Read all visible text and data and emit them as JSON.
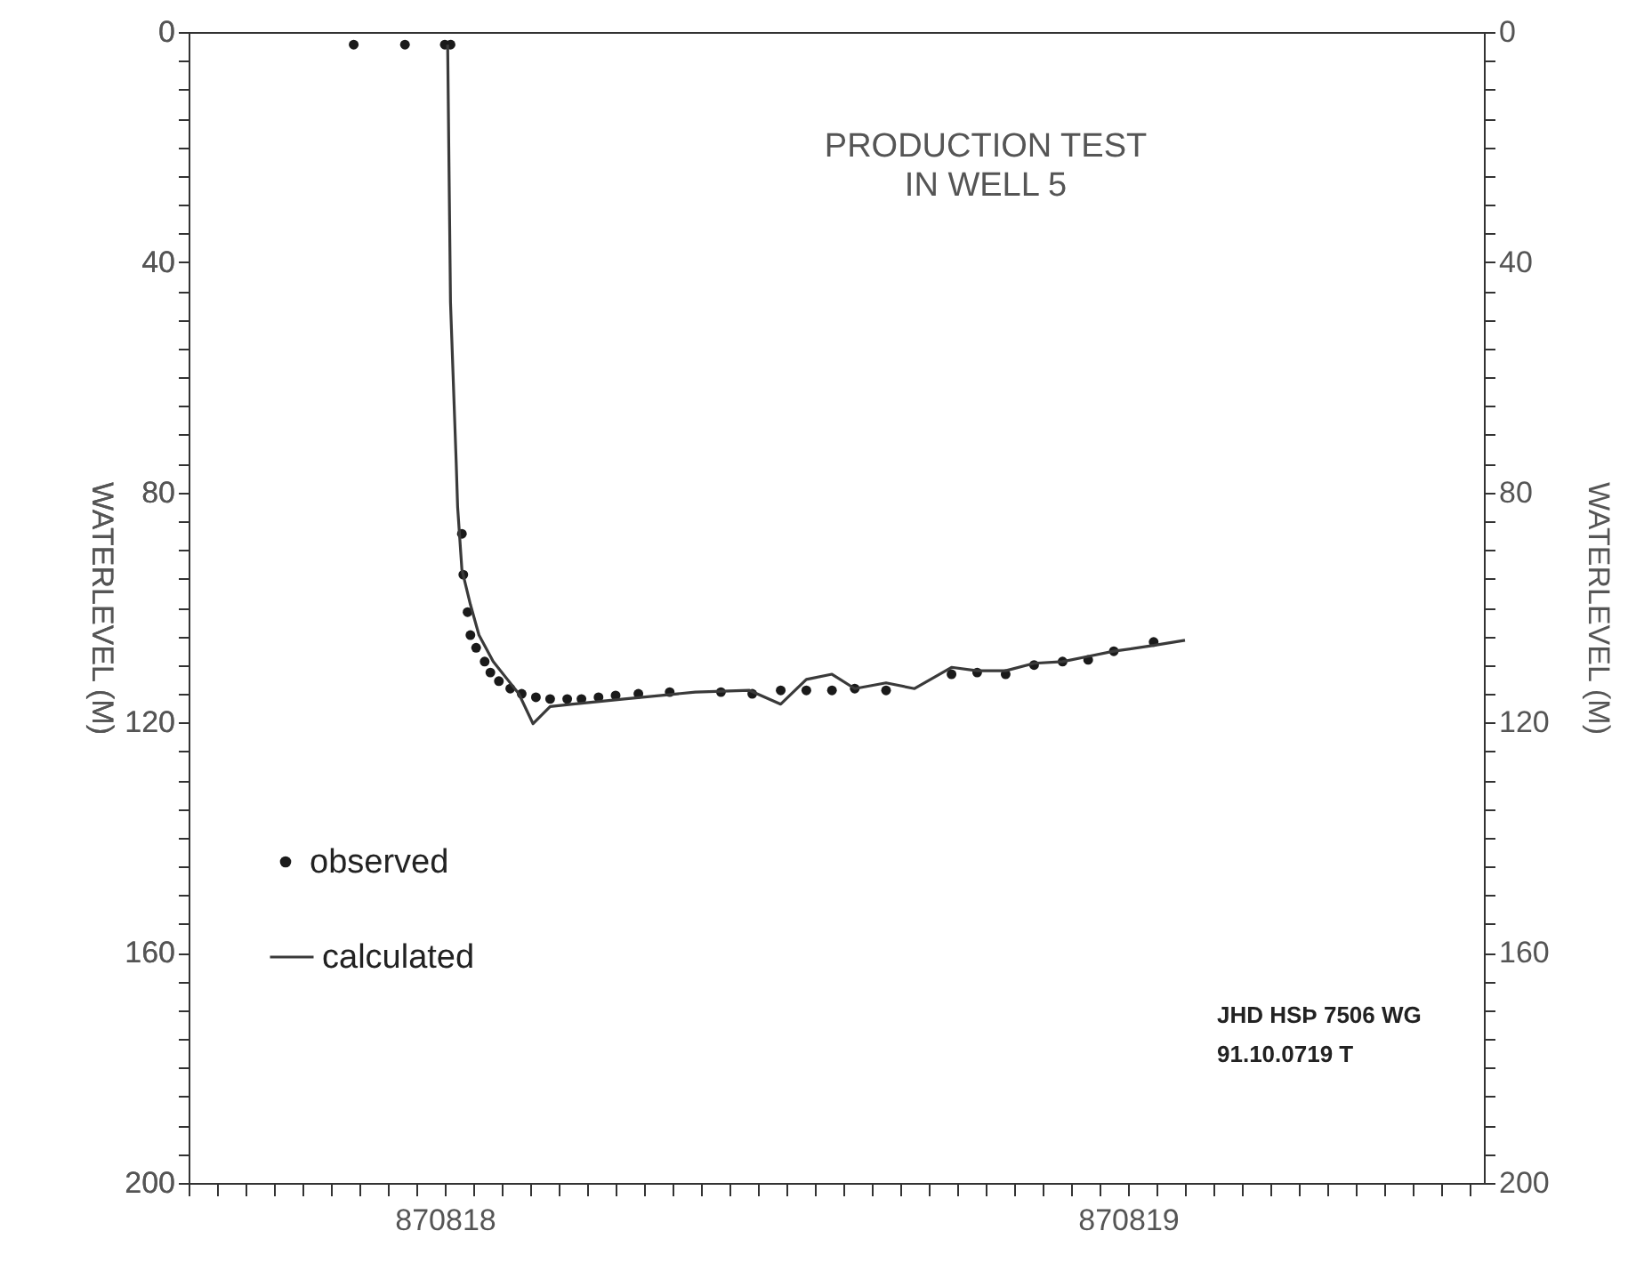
{
  "chart_data": {
    "type": "line",
    "title": "PRODUCTION TEST\nIN WELL 5",
    "ylabel": "WATERLEVEL (M)",
    "y2label": "WATERLEVEL (M)",
    "annotations": [
      "JHD HSÞ 7506 WG",
      "91.10.0719 T"
    ],
    "xlim": [
      "--08-18T03:00",
      "--08-20T00:30"
    ],
    "xticks": [
      {
        "value": "--08-18T03:00",
        "label": null
      },
      {
        "value": "--08-18T04:00",
        "label": null
      },
      {
        "value": "--08-18T05:00",
        "label": null
      },
      {
        "value": "--08-18T06:00",
        "label": null
      },
      {
        "value": "--08-18T07:00",
        "label": null
      },
      {
        "value": "--08-18T08:00",
        "label": null
      },
      {
        "value": "--08-18T09:00",
        "label": null
      },
      {
        "value": "--08-18T10:00",
        "label": null
      },
      {
        "value": "--08-18T11:00",
        "label": null
      },
      {
        "value": "--08-18T12:00",
        "label": "870818"
      },
      {
        "value": "--08-18T13:00",
        "label": null
      },
      {
        "value": "--08-18T14:00",
        "label": null
      },
      {
        "value": "--08-18T15:00",
        "label": null
      },
      {
        "value": "--08-18T16:00",
        "label": null
      },
      {
        "value": "--08-18T17:00",
        "label": null
      },
      {
        "value": "--08-18T18:00",
        "label": null
      },
      {
        "value": "--08-18T19:00",
        "label": null
      },
      {
        "value": "--08-18T20:00",
        "label": null
      },
      {
        "value": "--08-18T21:00",
        "label": null
      },
      {
        "value": "--08-18T22:00",
        "label": null
      },
      {
        "value": "--08-18T23:00",
        "label": null
      },
      {
        "value": "--08-19T00:00",
        "label": null
      },
      {
        "value": "--08-19T01:00",
        "label": null
      },
      {
        "value": "--08-19T02:00",
        "label": null
      },
      {
        "value": "--08-19T03:00",
        "label": null
      },
      {
        "value": "--08-19T04:00",
        "label": null
      },
      {
        "value": "--08-19T05:00",
        "label": null
      },
      {
        "value": "--08-19T06:00",
        "label": null
      },
      {
        "value": "--08-19T07:00",
        "label": null
      },
      {
        "value": "--08-19T08:00",
        "label": null
      },
      {
        "value": "--08-19T09:00",
        "label": null
      },
      {
        "value": "--08-19T10:00",
        "label": null
      },
      {
        "value": "--08-19T11:00",
        "label": null
      },
      {
        "value": "--08-19T12:00",
        "label": "870819"
      },
      {
        "value": "--08-19T13:00",
        "label": null
      },
      {
        "value": "--08-19T14:00",
        "label": null
      },
      {
        "value": "--08-19T15:00",
        "label": null
      },
      {
        "value": "--08-19T16:00",
        "label": null
      },
      {
        "value": "--08-19T17:00",
        "label": null
      },
      {
        "value": "--08-19T18:00",
        "label": null
      },
      {
        "value": "--08-19T19:00",
        "label": null
      },
      {
        "value": "--08-19T20:00",
        "label": null
      },
      {
        "value": "--08-19T21:00",
        "label": null
      },
      {
        "value": "--08-19T22:00",
        "label": null
      },
      {
        "value": "--08-19T23:00",
        "label": null
      },
      {
        "value": "--08-20T00:00",
        "label": null
      }
    ],
    "ylim": [
      200,
      0
    ],
    "yticks": [
      0,
      {
        "value": 5,
        "label": null
      },
      {
        "value": 10,
        "label": null
      },
      {
        "value": 15,
        "label": null
      },
      {
        "value": 20,
        "label": null
      },
      {
        "value": 25,
        "label": null
      },
      {
        "value": 30,
        "label": null
      },
      {
        "value": 35,
        "label": null
      },
      40,
      {
        "value": 45,
        "label": null
      },
      {
        "value": 50,
        "label": null
      },
      {
        "value": 55,
        "label": null
      },
      {
        "value": 60,
        "label": null
      },
      {
        "value": 65,
        "label": null
      },
      {
        "value": 70,
        "label": null
      },
      {
        "value": 75,
        "label": null
      },
      80,
      {
        "value": 85,
        "label": null
      },
      {
        "value": 90,
        "label": null
      },
      {
        "value": 95,
        "label": null
      },
      {
        "value": 100,
        "label": null
      },
      {
        "value": 105,
        "label": null
      },
      {
        "value": 110,
        "label": null
      },
      {
        "value": 115,
        "label": null
      },
      120,
      {
        "value": 125,
        "label": null
      },
      {
        "value": 130,
        "label": null
      },
      {
        "value": 135,
        "label": null
      },
      {
        "value": 140,
        "label": null
      },
      {
        "value": 145,
        "label": null
      },
      {
        "value": 150,
        "label": null
      },
      {
        "value": 155,
        "label": null
      },
      160,
      {
        "value": 165,
        "label": null
      },
      {
        "value": 170,
        "label": null
      },
      {
        "value": 175,
        "label": null
      },
      {
        "value": 180,
        "label": null
      },
      {
        "value": 185,
        "label": null
      },
      {
        "value": 190,
        "label": null
      },
      {
        "value": 195,
        "label": null
      },
      200
    ],
    "y2lim": [
      200,
      0
    ],
    "y2ticks": [
      0,
      {
        "value": 5,
        "label": null
      },
      {
        "value": 10,
        "label": null
      },
      {
        "value": 15,
        "label": null
      },
      {
        "value": 20,
        "label": null
      },
      {
        "value": 25,
        "label": null
      },
      {
        "value": 30,
        "label": null
      },
      {
        "value": 35,
        "label": null
      },
      40,
      {
        "value": 45,
        "label": null
      },
      {
        "value": 50,
        "label": null
      },
      {
        "value": 55,
        "label": null
      },
      {
        "value": 60,
        "label": null
      },
      {
        "value": 65,
        "label": null
      },
      {
        "value": 70,
        "label": null
      },
      {
        "value": 75,
        "label": null
      },
      80,
      {
        "value": 85,
        "label": null
      },
      {
        "value": 90,
        "label": null
      },
      {
        "value": 95,
        "label": null
      },
      {
        "value": 100,
        "label": null
      },
      {
        "value": 105,
        "label": null
      },
      {
        "value": 110,
        "label": null
      },
      {
        "value": 115,
        "label": null
      },
      120,
      {
        "value": 125,
        "label": null
      },
      {
        "value": 130,
        "label": null
      },
      {
        "value": 135,
        "label": null
      },
      {
        "value": 140,
        "label": null
      },
      {
        "value": 145,
        "label": null
      },
      {
        "value": 150,
        "label": null
      },
      {
        "value": 155,
        "label": null
      },
      160,
      {
        "value": 165,
        "label": null
      },
      {
        "value": 170,
        "label": null
      },
      {
        "value": 175,
        "label": null
      },
      {
        "value": 180,
        "label": null
      },
      {
        "value": 185,
        "label": null
      },
      {
        "value": 190,
        "label": null
      },
      {
        "value": 195,
        "label": null
      },
      200
    ],
    "grid": false,
    "legend": "bottom left",
    "series": [
      {
        "name": "observed",
        "type": "scatter",
        "color": "#1a1a1a",
        "x": [
          "--08-18T08:48",
          "--08-18T10:36",
          "--08-18T12:00",
          "--08-18T12:12",
          "--08-18T12:36",
          "--08-18T12:39",
          "--08-18T12:48",
          "--08-18T12:54",
          "--08-18T13:06",
          "--08-18T13:24",
          "--08-18T13:36",
          "--08-18T13:54",
          "--08-18T14:18",
          "--08-18T14:42",
          "--08-18T15:12",
          "--08-18T15:42",
          "--08-18T16:18",
          "--08-18T16:48",
          "--08-18T17:24",
          "--08-18T18:00",
          "--08-18T18:48",
          "--08-18T19:54",
          "--08-18T21:42",
          "--08-18T22:48",
          "--08-18T23:48",
          "--08-19T00:42",
          "--08-19T01:36",
          "--08-19T02:24",
          "--08-19T03:30",
          "--08-19T05:48",
          "--08-19T06:42",
          "--08-19T07:42",
          "--08-19T08:42",
          "--08-19T09:42",
          "--08-19T10:36",
          "--08-19T11:30",
          "--08-19T12:54"
        ],
        "values": [
          2.2,
          2.2,
          2.2,
          2.2,
          87.2,
          94.3,
          100.8,
          104.8,
          107.0,
          109.4,
          111.3,
          112.8,
          114.1,
          115.0,
          115.6,
          115.9,
          115.9,
          115.9,
          115.6,
          115.3,
          115.0,
          114.7,
          114.7,
          115.0,
          114.4,
          114.4,
          114.4,
          114.1,
          114.4,
          111.6,
          111.3,
          111.6,
          110.0,
          109.4,
          109.1,
          107.6,
          106.0
        ]
      },
      {
        "name": "calculated",
        "type": "line",
        "color": "#3a3a3a",
        "x": [
          "--08-18T12:06",
          "--08-18T12:12",
          "--08-18T12:24",
          "--08-18T12:27",
          "--08-18T12:36",
          "--08-18T12:54",
          "--08-18T13:12",
          "--08-18T13:42",
          "--08-18T14:12",
          "--08-18T14:36",
          "--08-18T15:06",
          "--08-18T15:42",
          "--08-18T16:30",
          "--08-18T18:18",
          "--08-18T20:48",
          "--08-18T22:42",
          "--08-18T23:48",
          "--08-19T00:42",
          "--08-19T01:36",
          "--08-19T02:24",
          "--08-19T03:30",
          "--08-19T04:30",
          "--08-19T05:48",
          "--08-19T06:42",
          "--08-19T07:42",
          "--08-19T08:42",
          "--08-19T09:42",
          "--08-19T10:36",
          "--08-19T11:30",
          "--08-19T12:54",
          "--08-19T14:00"
        ],
        "values": [
          2.2,
          47,
          74.8,
          82.5,
          93.4,
          99.5,
          104.8,
          109.4,
          112.5,
          115.0,
          120.2,
          117.2,
          116.8,
          115.9,
          114.7,
          114.4,
          116.8,
          112.5,
          111.6,
          114.1,
          113.1,
          114.1,
          110.4,
          111.0,
          111.0,
          109.7,
          109.4,
          108.5,
          107.6,
          106.6,
          105.7
        ]
      }
    ]
  }
}
